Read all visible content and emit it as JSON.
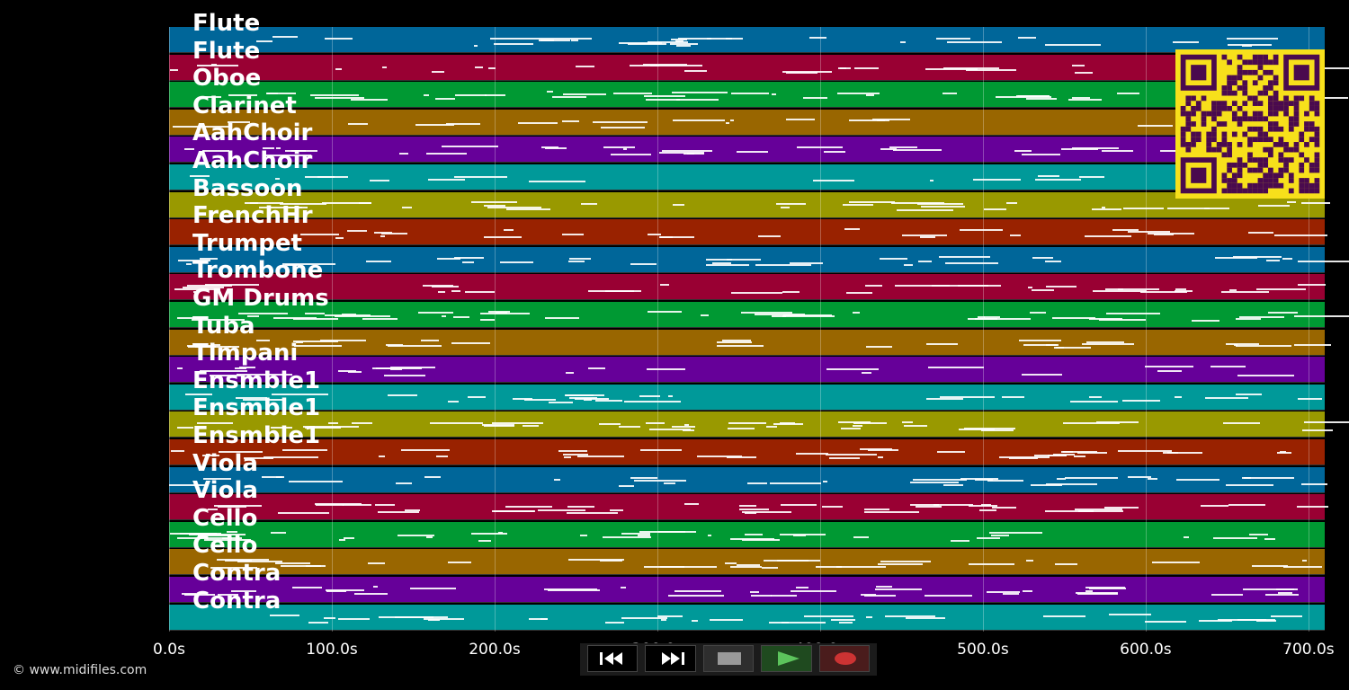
{
  "tracks": [
    {
      "name": "Flute",
      "color": "#006699"
    },
    {
      "name": "Flute",
      "color": "#990033"
    },
    {
      "name": "Oboe",
      "color": "#009933"
    },
    {
      "name": "Clarinet",
      "color": "#996600"
    },
    {
      "name": "AahChoir",
      "color": "#660099"
    },
    {
      "name": "AahChoir",
      "color": "#009999"
    },
    {
      "name": "Bassoon",
      "color": "#999900"
    },
    {
      "name": "FrenchHr",
      "color": "#992200"
    },
    {
      "name": "Trumpet",
      "color": "#006699"
    },
    {
      "name": "Trombone",
      "color": "#990033"
    },
    {
      "name": "GM Drums",
      "color": "#009933"
    },
    {
      "name": "Tuba",
      "color": "#996600"
    },
    {
      "name": "Timpani",
      "color": "#660099"
    },
    {
      "name": "Ensmble1",
      "color": "#009999"
    },
    {
      "name": "Ensmble1",
      "color": "#999900"
    },
    {
      "name": "Ensmble1",
      "color": "#992200"
    },
    {
      "name": "Viola",
      "color": "#006699"
    },
    {
      "name": "Viola",
      "color": "#990033"
    },
    {
      "name": "Cello",
      "color": "#009933"
    },
    {
      "name": "Cello",
      "color": "#996600"
    },
    {
      "name": "Contra",
      "color": "#660099"
    },
    {
      "name": "Contra",
      "color": "#009999"
    }
  ],
  "time_axis": {
    "max_seconds": 710,
    "ticks": [
      {
        "value": 0,
        "label": "0.0s"
      },
      {
        "value": 100,
        "label": "100.0s"
      },
      {
        "value": 200,
        "label": "200.0s"
      },
      {
        "value": 300,
        "label": "300.0s"
      },
      {
        "value": 400,
        "label": "400.0s"
      },
      {
        "value": 500,
        "label": "500.0s"
      },
      {
        "value": 600,
        "label": "600.0s"
      },
      {
        "value": 700,
        "label": "700.0s"
      }
    ]
  },
  "copyright": "© www.midifiles.com",
  "controls": [
    {
      "name": "rewind-button",
      "icon": "rewind-icon"
    },
    {
      "name": "fast-forward-button",
      "icon": "fast-forward-icon"
    },
    {
      "name": "stop-button",
      "icon": "stop-icon"
    },
    {
      "name": "play-button",
      "icon": "play-icon"
    },
    {
      "name": "record-button",
      "icon": "record-icon"
    }
  ],
  "qr_code": {
    "icon": "qr-code-icon",
    "colors": {
      "background": "#f7e01b",
      "modules": "#4a0a4e"
    }
  }
}
